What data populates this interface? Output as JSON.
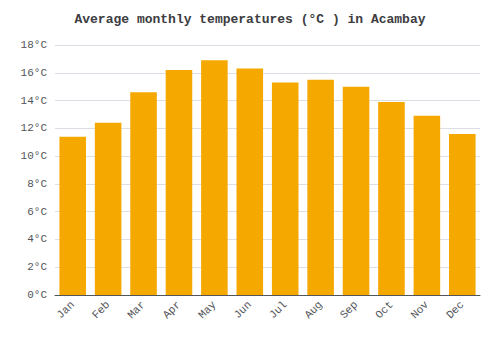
{
  "chart_data": {
    "type": "bar",
    "title": "Average monthly temperatures (°C ) in Acambay",
    "categories": [
      "Jan",
      "Feb",
      "Mar",
      "Apr",
      "May",
      "Jun",
      "Jul",
      "Aug",
      "Sep",
      "Oct",
      "Nov",
      "Dec"
    ],
    "values": [
      11.4,
      12.4,
      14.6,
      16.2,
      16.9,
      16.3,
      15.3,
      15.5,
      15.0,
      13.9,
      12.9,
      11.6
    ],
    "color": "#F5A800",
    "ylim": [
      0,
      18
    ],
    "yticks": [
      {
        "value": 0,
        "label": "0°C"
      },
      {
        "value": 2,
        "label": "2°C"
      },
      {
        "value": 4,
        "label": "4°C"
      },
      {
        "value": 6,
        "label": "6°C"
      },
      {
        "value": 8,
        "label": "8°C"
      },
      {
        "value": 10,
        "label": "10°C"
      },
      {
        "value": 12,
        "label": "12°C"
      },
      {
        "value": 14,
        "label": "14°C"
      },
      {
        "value": 16,
        "label": "16°C"
      },
      {
        "value": 18,
        "label": "18°C"
      }
    ],
    "grid": true
  }
}
